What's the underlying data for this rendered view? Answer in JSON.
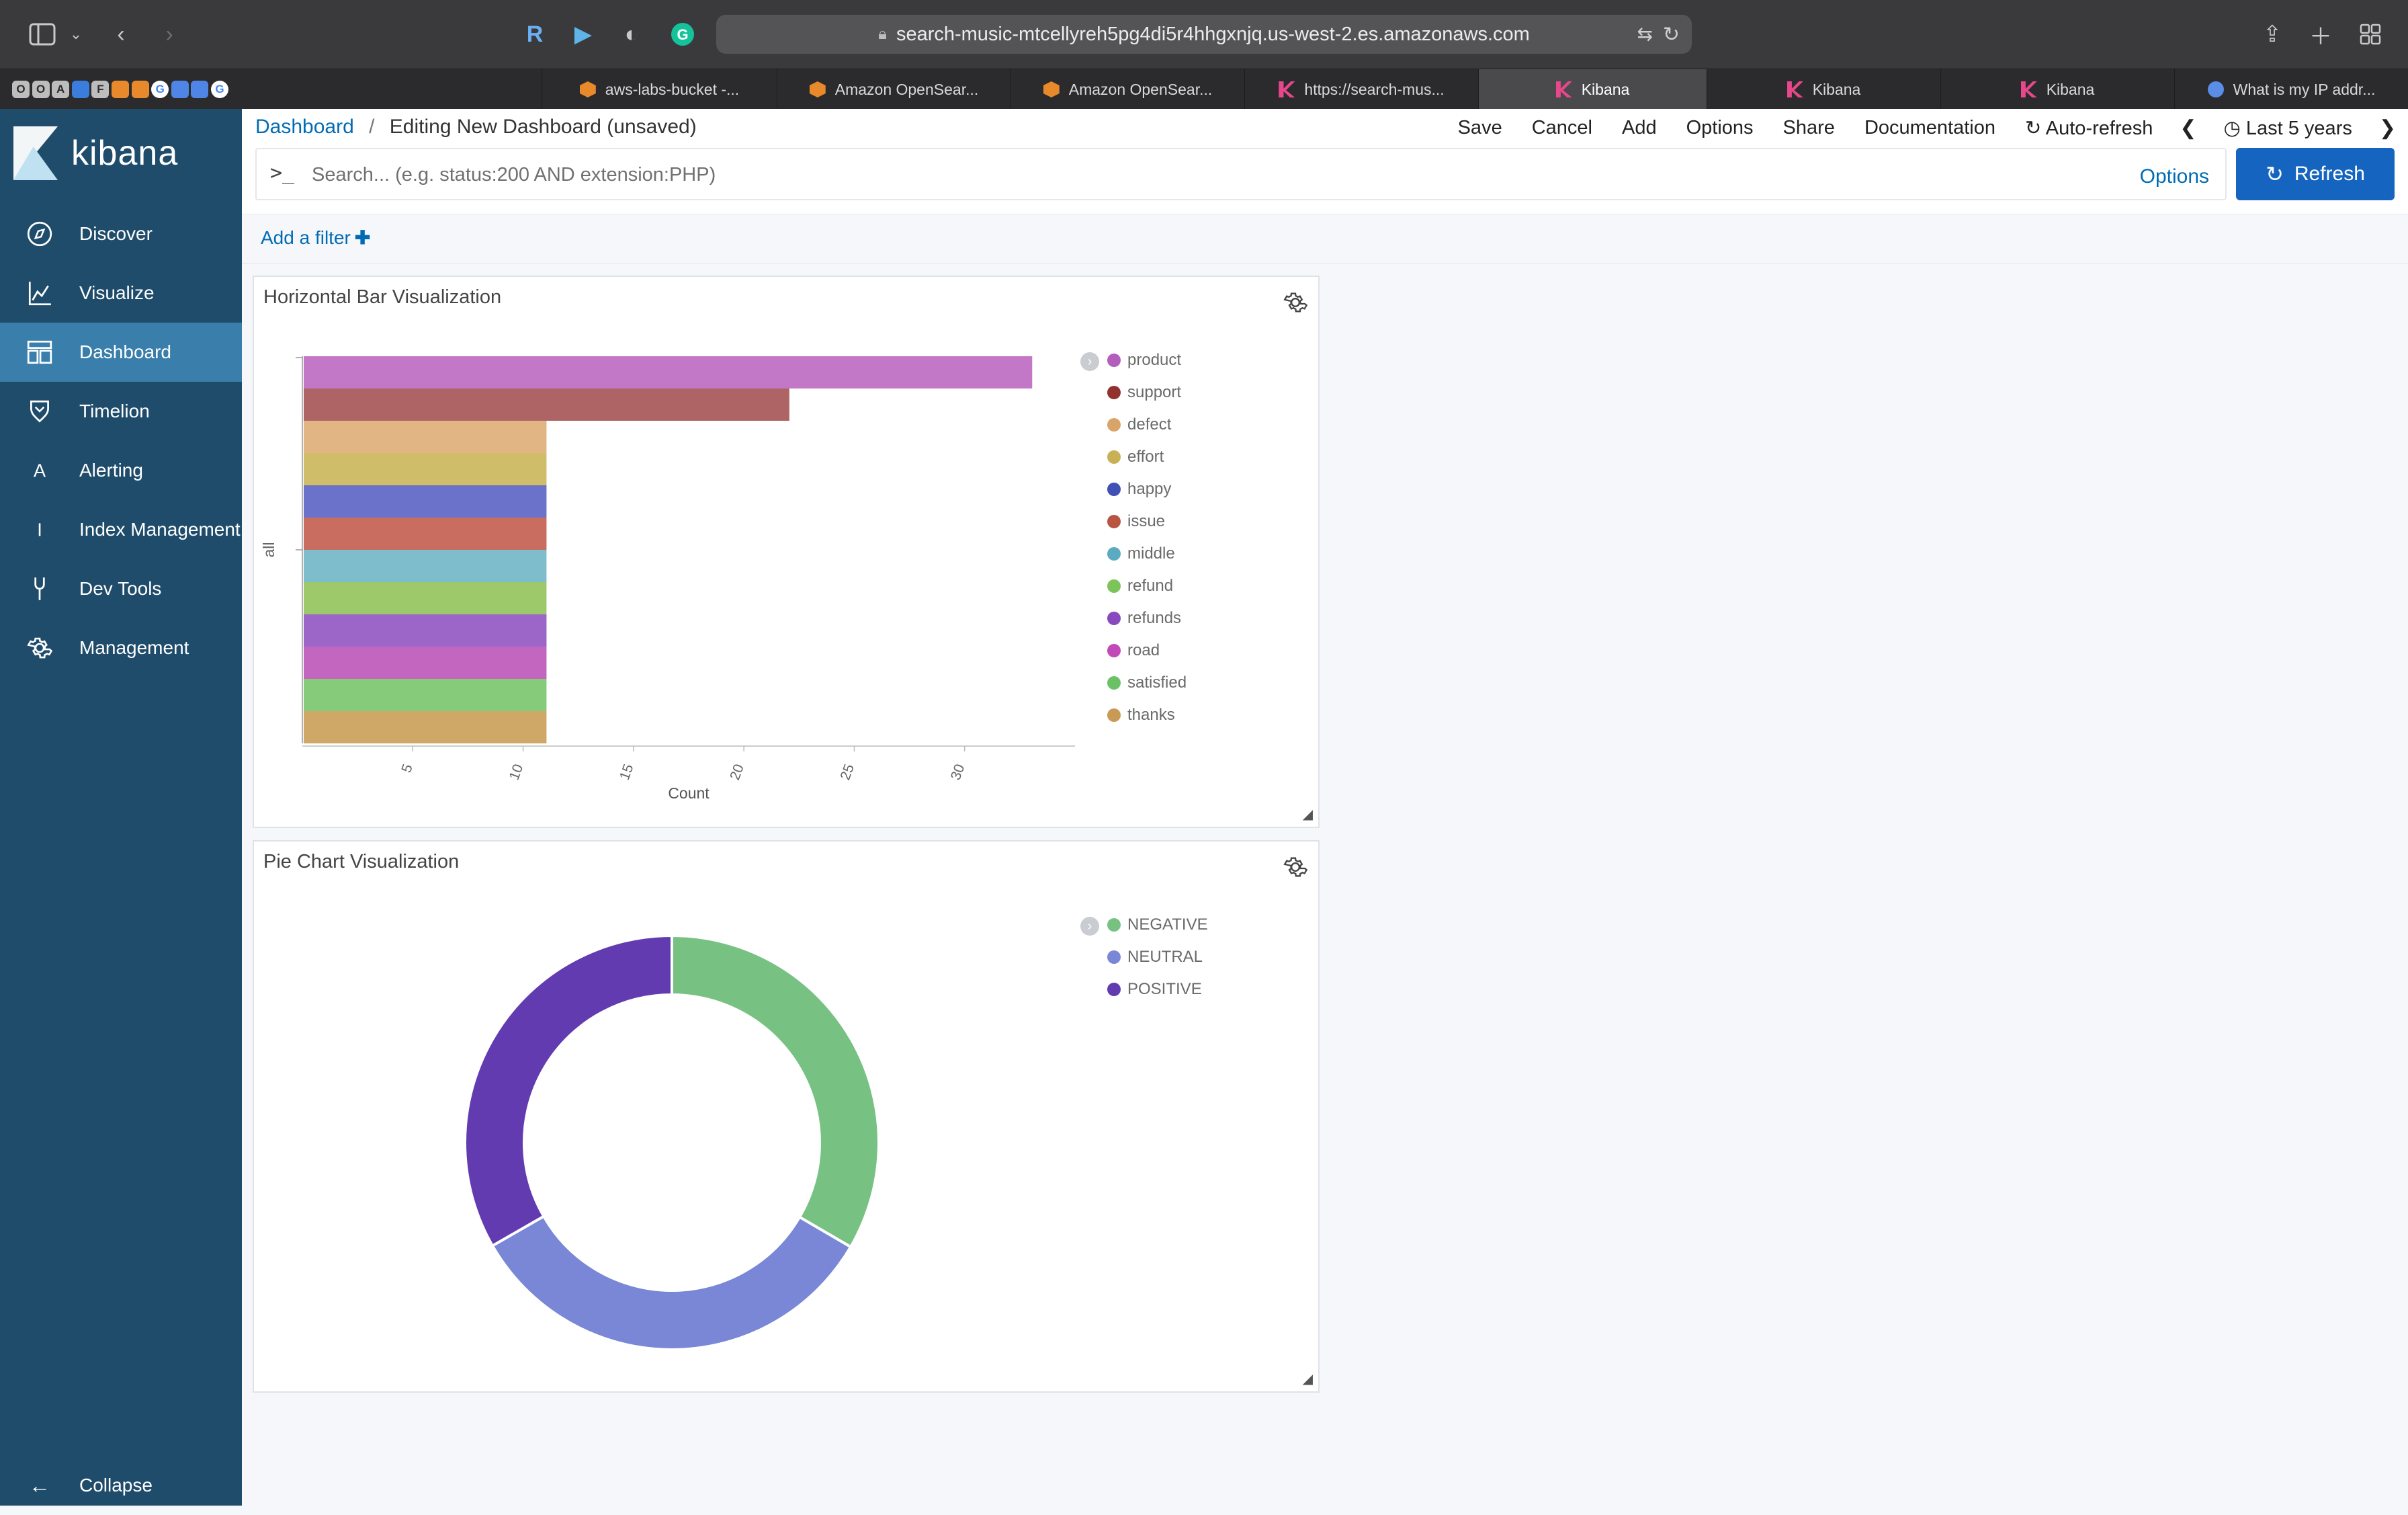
{
  "browser": {
    "url": "search-music-mtcellyreh5pg4di5r4hhgxnjq.us-west-2.es.amazonaws.com",
    "pinned_tabs": [
      {
        "letter": "O",
        "color": "#bdbdbd"
      },
      {
        "letter": "O",
        "color": "#bdbdbd"
      },
      {
        "letter": "A",
        "color": "#bdbdbd"
      },
      {
        "letter": "",
        "color": "#3b7ddd"
      },
      {
        "letter": "F",
        "color": "#bdbdbd"
      },
      {
        "letter": "",
        "color": "#e8892b"
      },
      {
        "letter": "",
        "color": "#e8892b"
      },
      {
        "letter": "G",
        "color": "#ffffff"
      },
      {
        "letter": "",
        "color": "#4f86e6"
      },
      {
        "letter": "",
        "color": "#4f86e6"
      },
      {
        "letter": "G",
        "color": "#ffffff"
      }
    ],
    "tabs": [
      {
        "label": "aws-labs-bucket -...",
        "favicon": "aws"
      },
      {
        "label": "Amazon OpenSear...",
        "favicon": "aws"
      },
      {
        "label": "Amazon OpenSear...",
        "favicon": "aws"
      },
      {
        "label": "https://search-mus...",
        "favicon": "kibana"
      },
      {
        "label": "Kibana",
        "favicon": "kibana",
        "active": true
      },
      {
        "label": "Kibana",
        "favicon": "kibana"
      },
      {
        "label": "Kibana",
        "favicon": "kibana"
      },
      {
        "label": "What is my IP addr...",
        "favicon": "link"
      }
    ]
  },
  "sidebar": {
    "logo_text": "kibana",
    "items": [
      {
        "label": "Discover",
        "icon": "compass-icon"
      },
      {
        "label": "Visualize",
        "icon": "chart-icon"
      },
      {
        "label": "Dashboard",
        "icon": "dashboard-icon",
        "active": true
      },
      {
        "label": "Timelion",
        "icon": "timelion-icon"
      },
      {
        "label": "Alerting",
        "icon": "letter-a-icon"
      },
      {
        "label": "Index Management",
        "icon": "letter-i-icon"
      },
      {
        "label": "Dev Tools",
        "icon": "wrench-icon"
      },
      {
        "label": "Management",
        "icon": "gear-icon"
      }
    ],
    "collapse_label": "Collapse"
  },
  "top": {
    "breadcrumb_root": "Dashboard",
    "breadcrumb_current": "Editing New Dashboard (unsaved)",
    "menu": {
      "save": "Save",
      "cancel": "Cancel",
      "add": "Add",
      "options": "Options",
      "share": "Share",
      "documentation": "Documentation",
      "auto_refresh": "Auto-refresh",
      "time_range": "Last 5 years"
    }
  },
  "query": {
    "prompt": ">_",
    "placeholder": "Search... (e.g. status:200 AND extension:PHP)",
    "options_label": "Options",
    "refresh_label": "Refresh"
  },
  "filters": {
    "add_label": "Add a filter"
  },
  "panels": {
    "bar_title": "Horizontal Bar Visualization",
    "pie_title": "Pie Chart Visualization"
  },
  "chart_data": [
    {
      "type": "bar",
      "orientation": "horizontal",
      "title": "Horizontal Bar Visualization",
      "xlabel": "Count",
      "ylabel": "all",
      "xlim": [
        0,
        35
      ],
      "x_ticks": [
        5,
        10,
        15,
        20,
        25,
        30
      ],
      "legend_position": "right",
      "grid": false,
      "categories": [
        "product",
        "support",
        "defect",
        "effort",
        "happy",
        "issue",
        "middle",
        "refund",
        "refunds",
        "road",
        "satisfied",
        "thanks"
      ],
      "values": [
        33,
        22,
        11,
        11,
        11,
        11,
        11,
        11,
        11,
        11,
        11,
        11
      ],
      "colors": [
        "#c278c6",
        "#ae6464",
        "#e1b584",
        "#cfbd6a",
        "#6a73c9",
        "#c96d60",
        "#7dbdcc",
        "#9ec96a",
        "#9c66c9",
        "#c266c0",
        "#86cb7a",
        "#cfa868"
      ],
      "legend_colors": [
        "#b35ebc",
        "#93312f",
        "#d9a46a",
        "#c8b054",
        "#3f51b5",
        "#b8543f",
        "#5aaac2",
        "#7cc35a",
        "#8a48bf",
        "#c24ab8",
        "#6cc166",
        "#c99a56"
      ]
    },
    {
      "type": "pie",
      "donut": true,
      "title": "Pie Chart Visualization",
      "legend_position": "right",
      "categories": [
        "NEGATIVE",
        "NEUTRAL",
        "POSITIVE"
      ],
      "values": [
        33.4,
        33.3,
        33.3
      ],
      "colors": [
        "#77c283",
        "#7987d6",
        "#633bb1"
      ]
    }
  ]
}
